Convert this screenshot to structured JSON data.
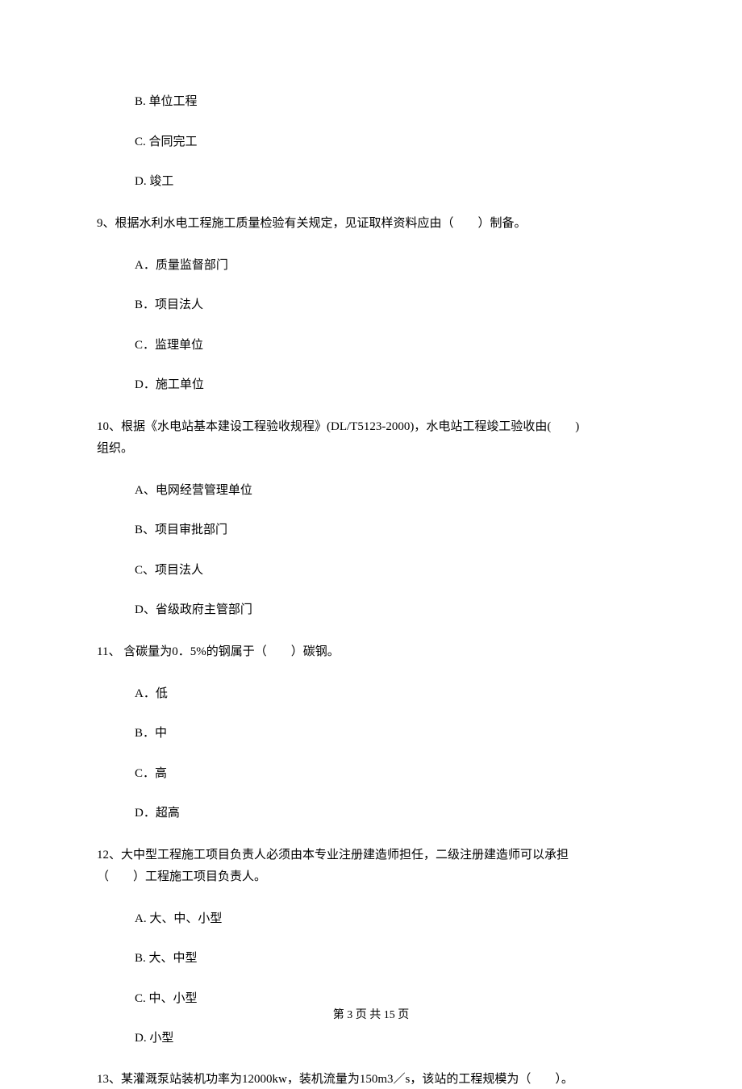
{
  "q8": {
    "options": {
      "b": "B.  单位工程",
      "c": "C.  合同完工",
      "d": "D.  竣工"
    }
  },
  "q9": {
    "text": "9、根据水利水电工程施工质量检验有关规定，见证取样资料应由（　　）制备。",
    "options": {
      "a": "A．质量监督部门",
      "b": "B．项目法人",
      "c": "C．监理单位",
      "d": "D．施工单位"
    }
  },
  "q10": {
    "line1": "10、根据《水电站基本建设工程验收规程》(DL/T5123-2000)，水电站工程竣工验收由(　　)",
    "line2": "组织。",
    "options": {
      "a": "A、电网经营管理单位",
      "b": "B、项目审批部门",
      "c": "C、项目法人",
      "d": "D、省级政府主管部门"
    }
  },
  "q11": {
    "text": "11、 含碳量为0．5%的钢属于（　　）碳钢。",
    "options": {
      "a": "A．低",
      "b": "B．中",
      "c": "C．高",
      "d": "D．超高"
    }
  },
  "q12": {
    "line1": "12、大中型工程施工项目负责人必须由本专业注册建造师担任，二级注册建造师可以承担",
    "line2": "（　　）工程施工项目负责人。",
    "options": {
      "a": "A. 大、中、小型",
      "b": "B. 大、中型",
      "c": "C. 中、小型",
      "d": "D. 小型"
    }
  },
  "q13": {
    "text": "13、某灌溉泵站装机功率为12000kw，装机流量为150m3／s，该站的工程规模为（　　）。"
  },
  "footer": "第 3 页 共 15 页"
}
